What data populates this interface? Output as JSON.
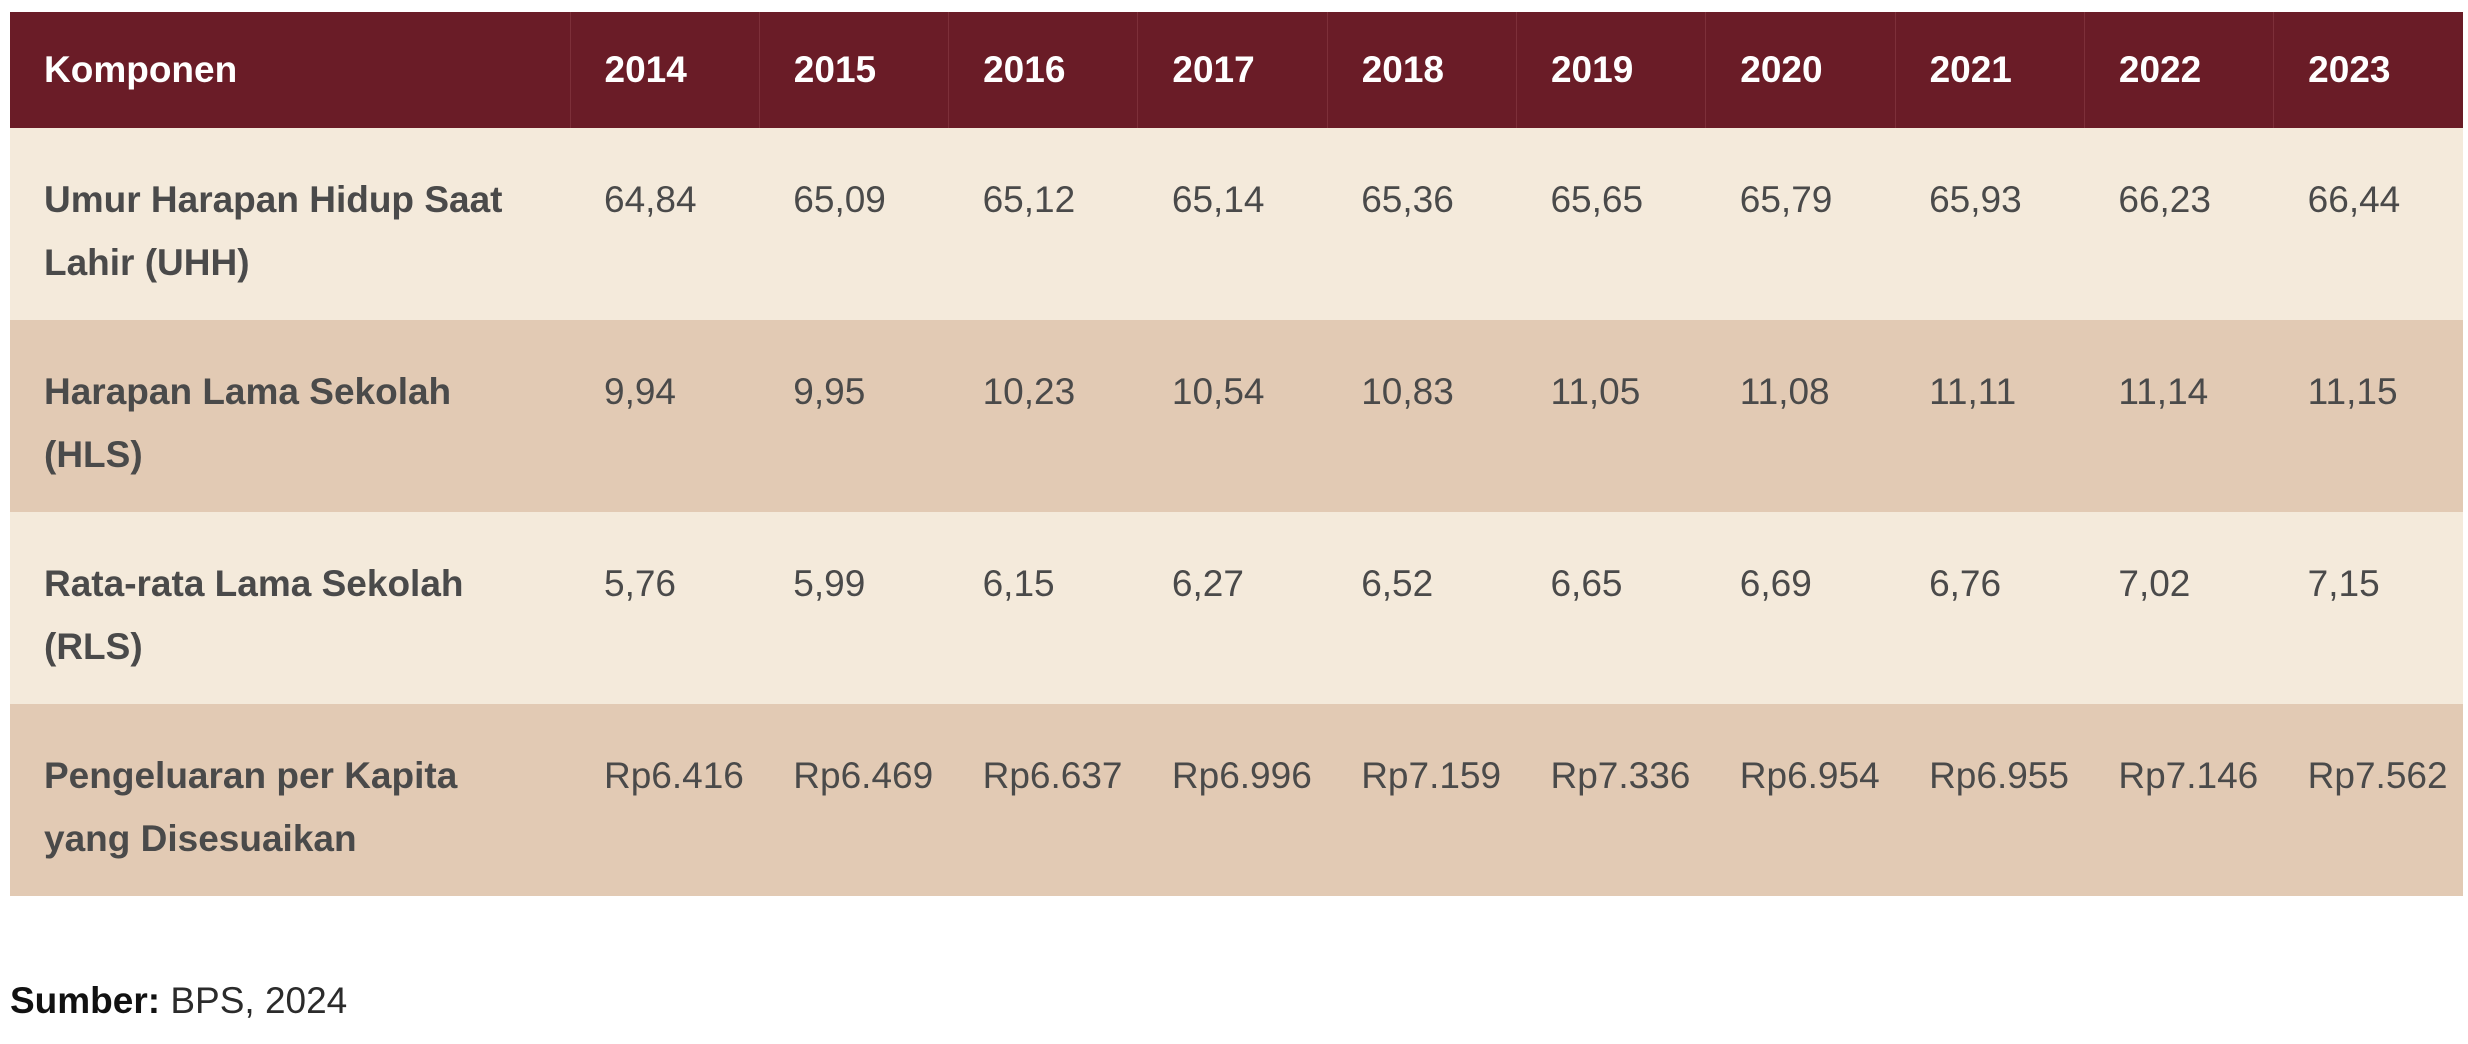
{
  "table": {
    "header": [
      "Komponen",
      "2014",
      "2015",
      "2016",
      "2017",
      "2018",
      "2019",
      "2020",
      "2021",
      "2022",
      "2023"
    ],
    "rows": [
      {
        "label": "Umur Harapan Hidup Saat Lahir (UHH)",
        "values": [
          "64,84",
          "65,09",
          "65,12",
          "65,14",
          "65,36",
          "65,65",
          "65,79",
          "65,93",
          "66,23",
          "66,44"
        ]
      },
      {
        "label": "Harapan Lama Sekolah (HLS)",
        "values": [
          "9,94",
          "9,95",
          "10,23",
          "10,54",
          "10,83",
          "11,05",
          "11,08",
          "11,11",
          "11,14",
          "11,15"
        ]
      },
      {
        "label": "Rata-rata Lama Sekolah (RLS)",
        "values": [
          "5,76",
          "5,99",
          "6,15",
          "6,27",
          "6,52",
          "6,65",
          "6,69",
          "6,76",
          "7,02",
          "7,15"
        ]
      },
      {
        "label": "Pengeluaran per Kapita yang Disesuaikan",
        "values": [
          "Rp6.416",
          "Rp6.469",
          "Rp6.637",
          "Rp6.996",
          "Rp7.159",
          "Rp7.336",
          "Rp6.954",
          "Rp6.955",
          "Rp7.146",
          "Rp7.562"
        ]
      }
    ]
  },
  "source": {
    "label": "Sumber:",
    "text": " BPS, 2024"
  },
  "colors": {
    "header_bg": "#6a1c27",
    "row_light": "#f4eadb",
    "row_dark": "#e2cab4"
  }
}
